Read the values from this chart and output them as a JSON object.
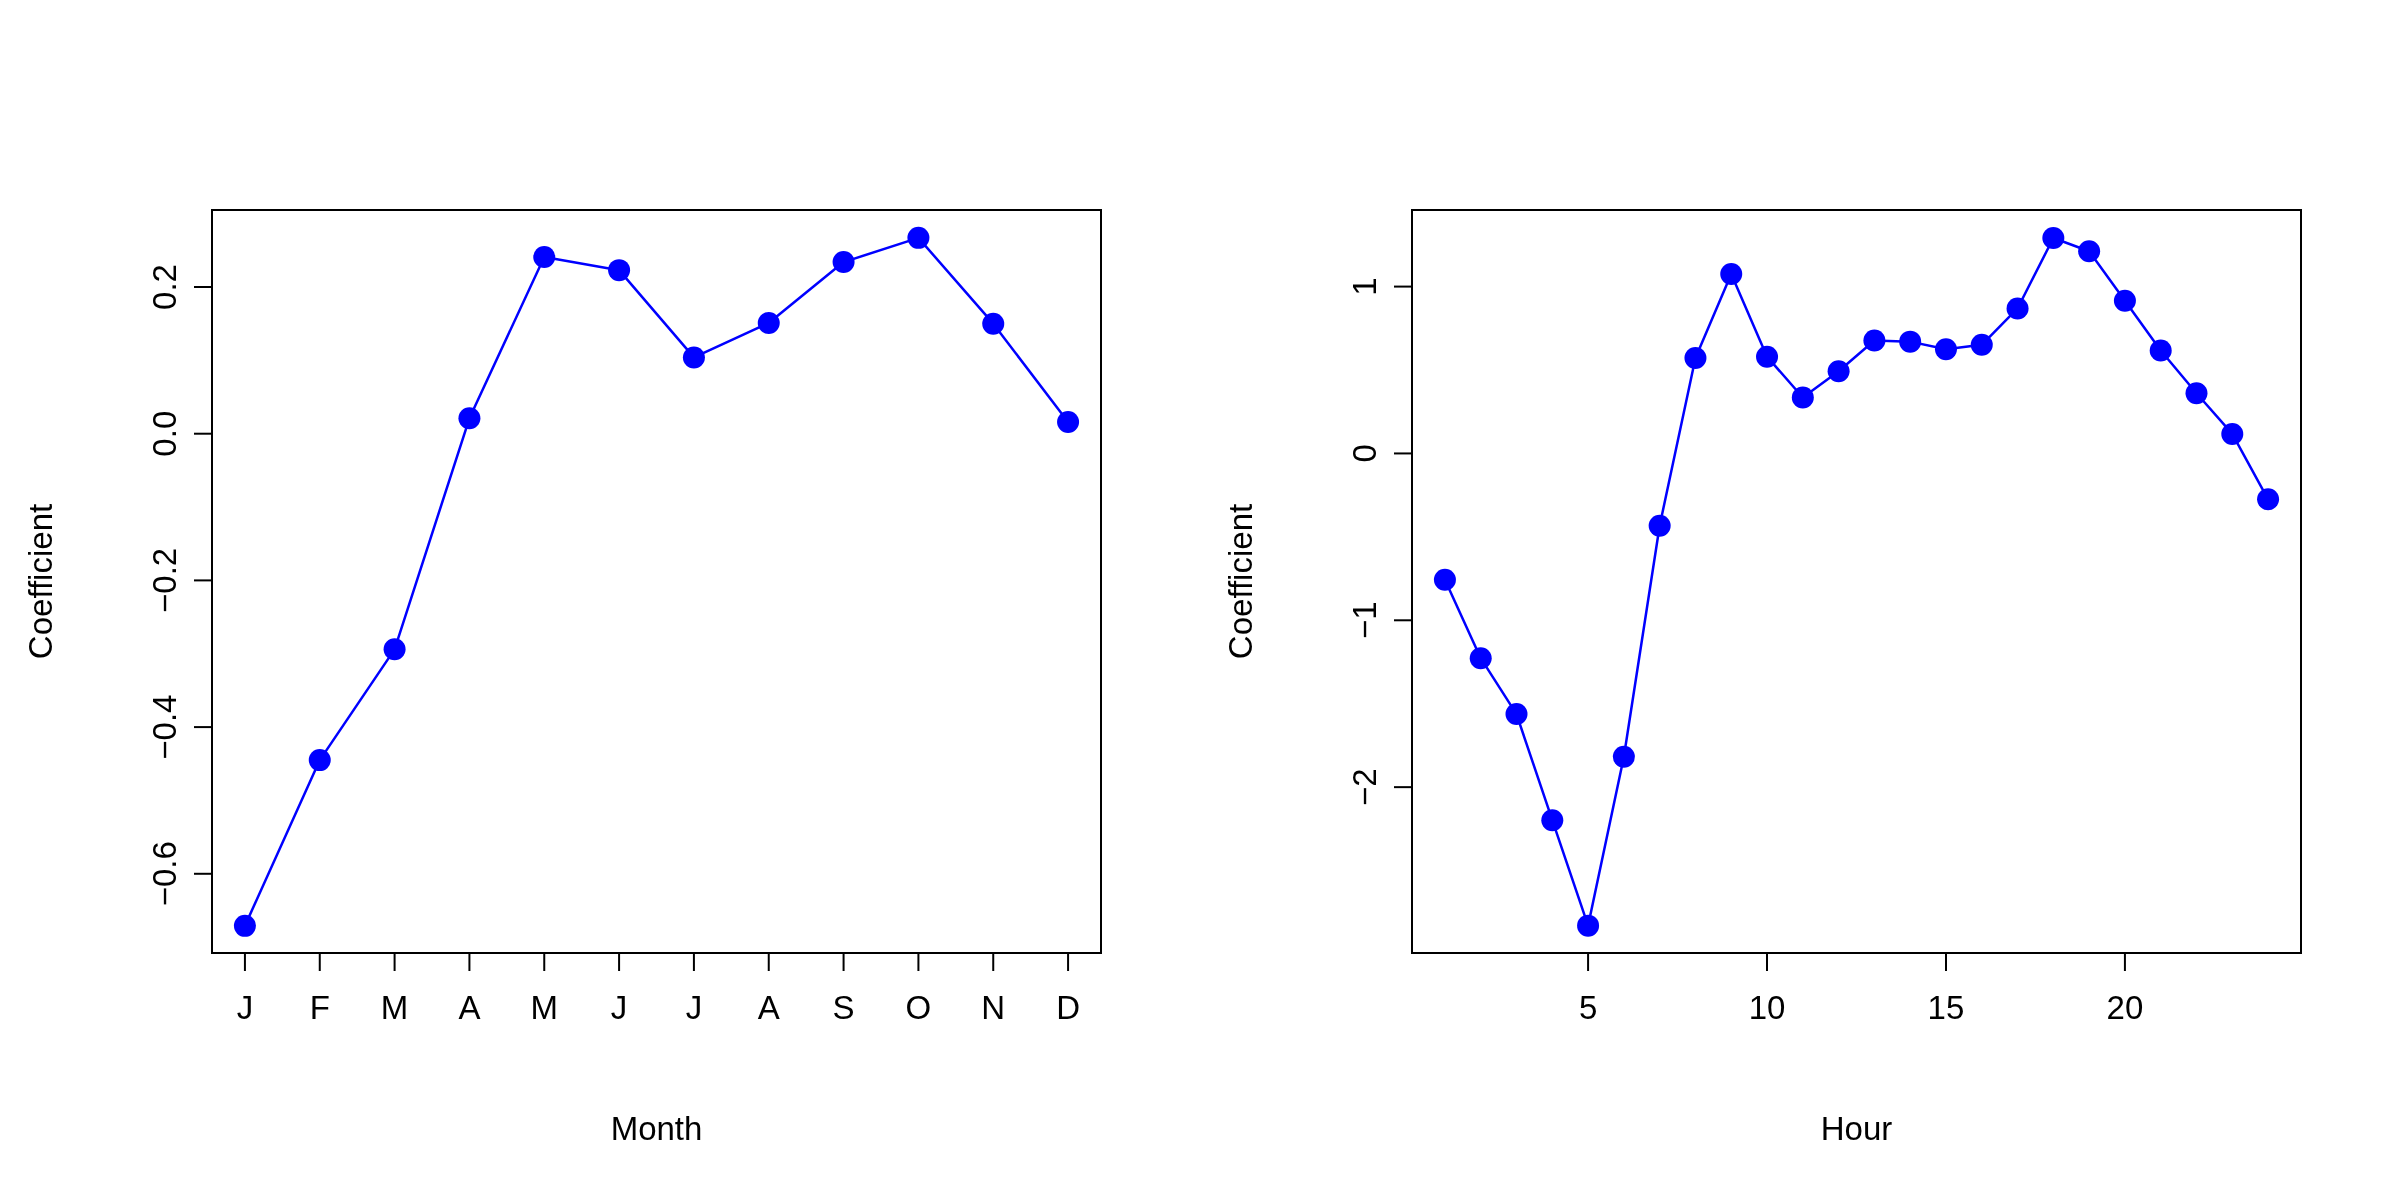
{
  "chart_data": [
    {
      "type": "line",
      "xlabel": "Month",
      "ylabel": "Coefficient",
      "categories": [
        "J",
        "F",
        "M",
        "A",
        "M",
        "J",
        "J",
        "A",
        "S",
        "O",
        "N",
        "D"
      ],
      "values": [
        -0.671,
        -0.445,
        -0.294,
        0.021,
        0.241,
        0.223,
        0.104,
        0.151,
        0.234,
        0.267,
        0.15,
        0.016
      ],
      "color": "#0000ff",
      "marker": "circle",
      "line_style": "solid",
      "ylim": [
        -0.708,
        0.305
      ],
      "yticks": [
        {
          "value": -0.6,
          "label": "−0.6"
        },
        {
          "value": -0.4,
          "label": "−0.4"
        },
        {
          "value": -0.2,
          "label": "−0.2"
        },
        {
          "value": 0,
          "label": "0.0"
        },
        0.2
      ],
      "grid": false
    },
    {
      "type": "line",
      "xlabel": "Hour",
      "ylabel": "Coefficient",
      "x": [
        1,
        2,
        3,
        4,
        5,
        6,
        7,
        8,
        9,
        10,
        11,
        12,
        13,
        14,
        15,
        16,
        17,
        18,
        19,
        20,
        21,
        22,
        23,
        24
      ],
      "values": [
        -0.757,
        -1.227,
        -1.562,
        -2.198,
        -2.83,
        -1.818,
        -0.433,
        0.572,
        1.076,
        0.58,
        0.335,
        0.493,
        0.677,
        0.67,
        0.625,
        0.651,
        0.869,
        1.291,
        1.212,
        0.915,
        0.617,
        0.361,
        0.117,
        -0.275
      ],
      "color": "#0000ff",
      "marker": "circle",
      "line_style": "solid",
      "xlim": [
        0.08,
        24.92
      ],
      "xticks": [
        5,
        10,
        15,
        20
      ],
      "ylim": [
        -2.994,
        1.459
      ],
      "yticks": [
        {
          "value": -2,
          "label": "−2"
        },
        {
          "value": -1,
          "label": "−1"
        },
        0,
        1
      ],
      "grid": false
    }
  ]
}
